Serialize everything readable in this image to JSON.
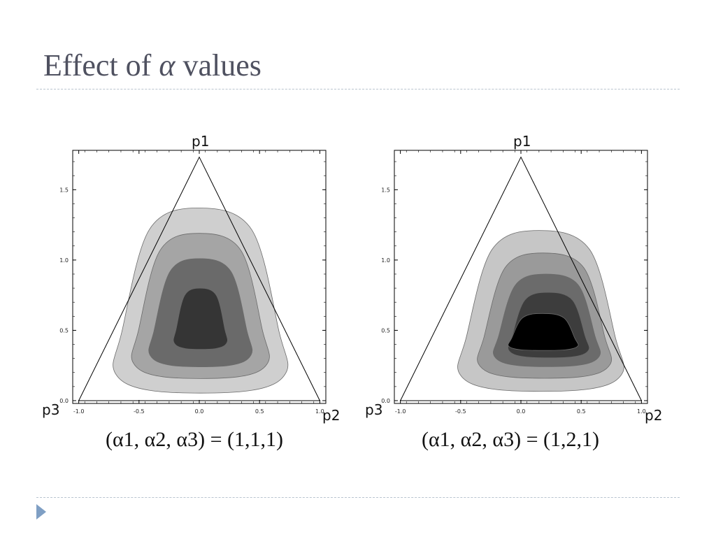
{
  "slide": {
    "title_prefix": "Effect of ",
    "title_symbol": "α",
    "title_suffix": " values"
  },
  "chart_data": [
    {
      "type": "contour",
      "title": "",
      "caption": "(α1, α2, α3) = (1,1,1)",
      "alpha": [
        1,
        1,
        1
      ],
      "vertex_labels": [
        "p1",
        "p2",
        "p3"
      ],
      "xlim": [
        -1.05,
        1.05
      ],
      "ylim": [
        -0.02,
        1.78
      ],
      "x_ticks": [
        "-1.0",
        "-0.5",
        "0.0",
        "0.5",
        "1.0"
      ],
      "y_ticks": [
        "0.0",
        "0.5",
        "1.0",
        "1.5"
      ],
      "triangle": [
        [
          0,
          1.732
        ],
        [
          1.0,
          0
        ],
        [
          -1.0,
          0
        ]
      ],
      "contour_levels": [
        {
          "level": 1,
          "fill": "#cfcfcf",
          "x": [
            -0.7,
            0.72
          ],
          "y": [
            0.07,
            1.37
          ]
        },
        {
          "level": 2,
          "fill": "#a5a5a5",
          "x": [
            -0.55,
            0.57
          ],
          "y": [
            0.17,
            1.19
          ]
        },
        {
          "level": 3,
          "fill": "#6a6a6a",
          "x": [
            -0.41,
            0.43
          ],
          "y": [
            0.25,
            1.01
          ]
        },
        {
          "level": 4,
          "fill": "#353535",
          "x": [
            -0.21,
            0.23
          ],
          "y": [
            0.37,
            0.8
          ]
        }
      ]
    },
    {
      "type": "contour",
      "title": "",
      "caption": "(α1, α2, α3) = (1,2,1)",
      "alpha": [
        1,
        2,
        1
      ],
      "vertex_labels": [
        "p1",
        "p2",
        "p3"
      ],
      "xlim": [
        -1.05,
        1.05
      ],
      "ylim": [
        -0.02,
        1.78
      ],
      "x_ticks": [
        "-1.0",
        "-0.5",
        "0.0",
        "0.5",
        "1.0"
      ],
      "y_ticks": [
        "0.0",
        "0.5",
        "1.0",
        "1.5"
      ],
      "triangle": [
        [
          0,
          1.732
        ],
        [
          1.0,
          0
        ],
        [
          -1.0,
          0
        ]
      ],
      "contour_levels": [
        {
          "level": 1,
          "fill": "#c6c6c6",
          "x": [
            -0.51,
            0.84
          ],
          "y": [
            0.08,
            1.21
          ]
        },
        {
          "level": 2,
          "fill": "#9a9a9a",
          "x": [
            -0.35,
            0.74
          ],
          "y": [
            0.17,
            1.05
          ]
        },
        {
          "level": 3,
          "fill": "#6b6b6b",
          "x": [
            -0.22,
            0.65
          ],
          "y": [
            0.25,
            0.9
          ]
        },
        {
          "level": 4,
          "fill": "#3d3d3d",
          "x": [
            -0.1,
            0.56
          ],
          "y": [
            0.31,
            0.77
          ]
        },
        {
          "level": 5,
          "fill": "#000000",
          "x": [
            -0.1,
            0.47
          ],
          "y": [
            0.36,
            0.62
          ]
        }
      ]
    }
  ]
}
